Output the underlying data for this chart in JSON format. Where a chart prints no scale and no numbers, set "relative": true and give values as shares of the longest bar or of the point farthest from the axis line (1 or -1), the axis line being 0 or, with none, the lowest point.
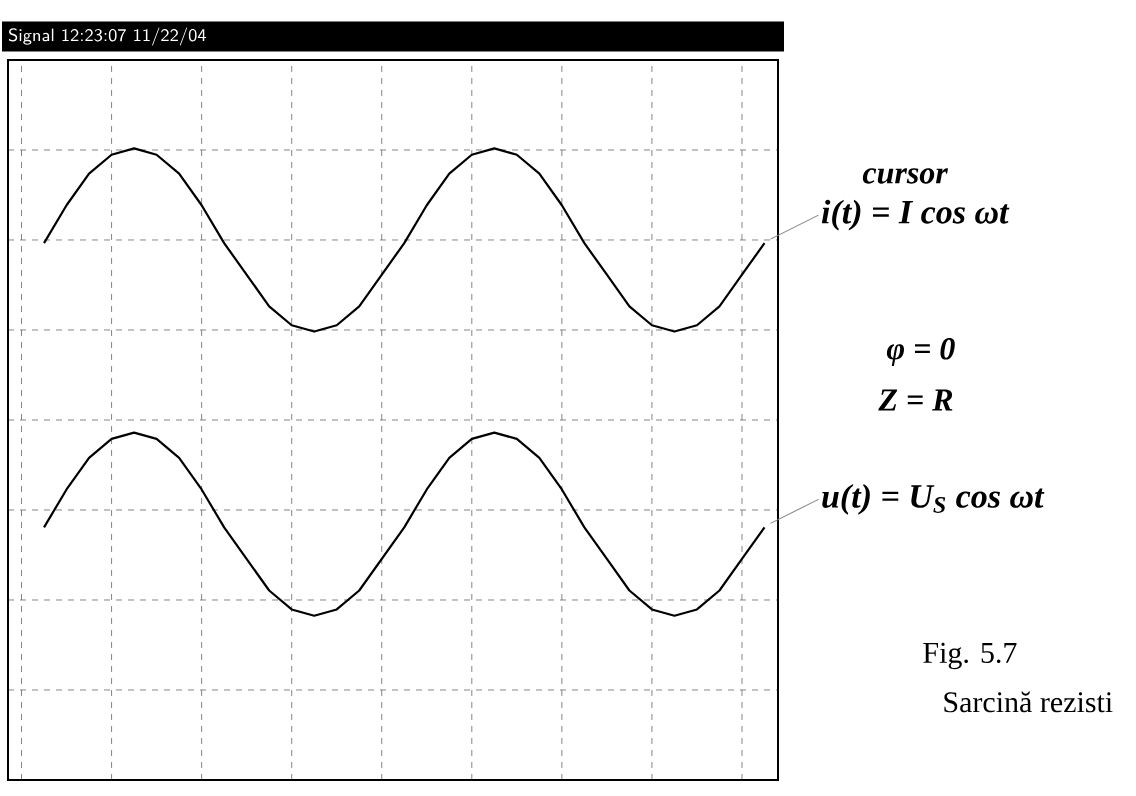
{
  "chart_data": {
    "type": "line",
    "title": "Signal 12:23:07 11/22/04",
    "relative": true,
    "grid": true,
    "legend": "right",
    "marker": "none",
    "line_style": "solid",
    "categories": [
      null,
      null,
      null,
      null,
      null,
      null,
      null,
      null,
      null,
      null,
      null,
      null,
      null,
      null,
      null,
      null,
      null,
      null,
      null,
      null,
      null,
      null,
      null,
      null,
      null,
      null,
      null,
      null,
      null,
      null,
      null,
      null,
      null
    ],
    "series": [
      {
        "name": "i(t) = I cos ωt",
        "color": "#000000",
        "values": [
          0.85,
          0.91,
          0.96,
          0.99,
          1,
          0.99,
          0.96,
          0.91,
          0.85,
          0.8,
          0.75,
          0.72,
          0.71,
          0.72,
          0.75,
          0.8,
          0.85,
          0.91,
          0.96,
          0.99,
          1,
          0.99,
          0.96,
          0.91,
          0.85,
          0.8,
          0.75,
          0.72,
          0.71,
          0.72,
          0.75,
          0.8,
          0.85
        ]
      },
      {
        "name": "u(t) = U$_{S}$ cos ωt",
        "color": "#000000",
        "values": [
          0.4,
          0.46,
          0.51,
          0.54,
          0.55,
          0.54,
          0.51,
          0.46,
          0.4,
          0.35,
          0.3,
          0.27,
          0.26,
          0.27,
          0.3,
          0.35,
          0.4,
          0.46,
          0.51,
          0.54,
          0.55,
          0.54,
          0.51,
          0.46,
          0.4,
          0.35,
          0.3,
          0.27,
          0.26,
          0.27,
          0.3,
          0.35,
          0.4
        ]
      }
    ],
    "annotations": [
      "cursor",
      "φ = 0",
      "Z = R",
      "Fig. 5.7",
      "Sarcină rezisti"
    ]
  }
}
